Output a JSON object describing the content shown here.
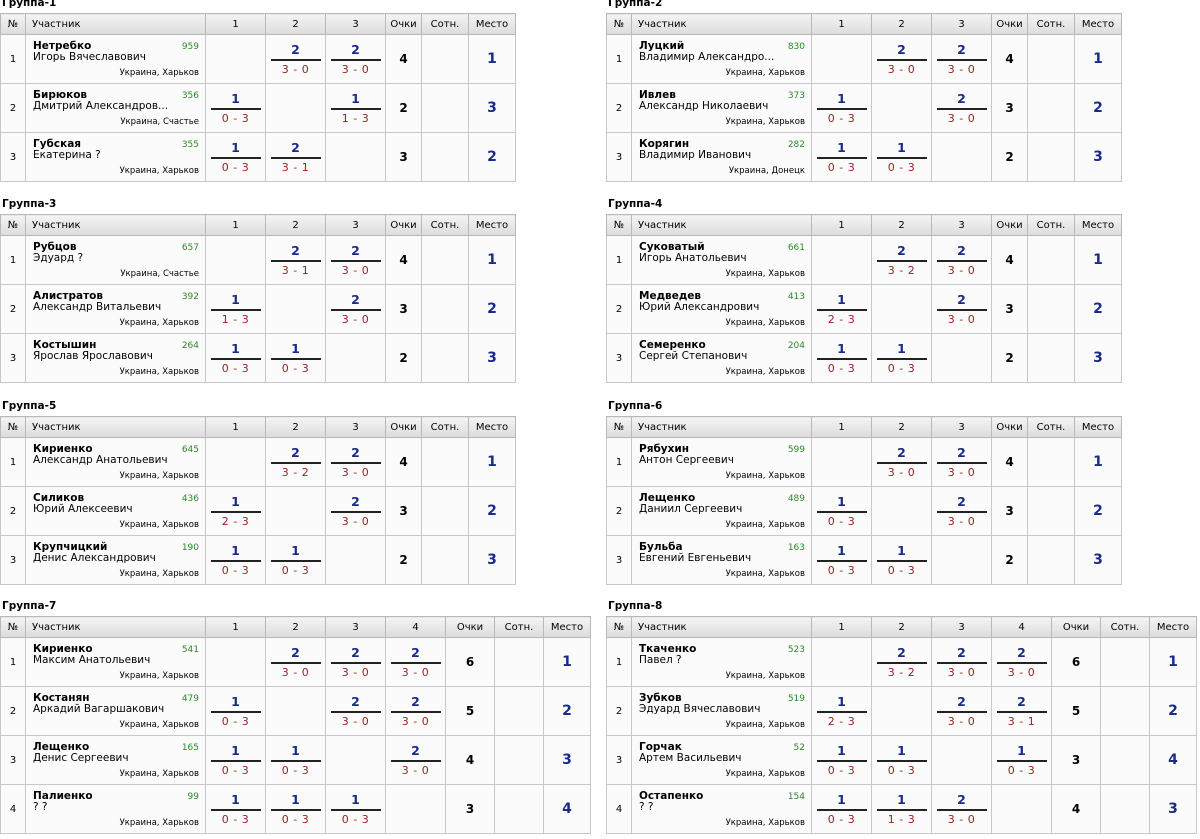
{
  "headers": {
    "num": "№",
    "participant": "Участник",
    "points": "Очки",
    "ratio": "Сотн.",
    "place": "Место"
  },
  "groups": [
    {
      "title": "Группа-1",
      "cols": [
        "1",
        "2",
        "3"
      ],
      "rows": [
        {
          "num": "1",
          "surname": "Нетребко",
          "name": "Игорь Вячеславович",
          "rating": "959",
          "location": "Украина, Харьков",
          "results": [
            null,
            {
              "p": "2",
              "s": "3 - 0"
            },
            {
              "p": "2",
              "s": "3 - 0"
            }
          ],
          "points": "4",
          "ratio": "",
          "place": "1"
        },
        {
          "num": "2",
          "surname": "Бирюков",
          "name": "Дмитрий Александров...",
          "rating": "356",
          "location": "Украина, Счастье",
          "results": [
            {
              "p": "1",
              "s": "0 - 3"
            },
            null,
            {
              "p": "1",
              "s": "1 - 3"
            }
          ],
          "points": "2",
          "ratio": "",
          "place": "3"
        },
        {
          "num": "3",
          "surname": "Губская",
          "name": "Екатерина ?",
          "rating": "355",
          "location": "Украина, Харьков",
          "results": [
            {
              "p": "1",
              "s": "0 - 3"
            },
            {
              "p": "2",
              "s": "3 - 1"
            },
            null
          ],
          "points": "3",
          "ratio": "",
          "place": "2"
        }
      ]
    },
    {
      "title": "Группа-2",
      "cols": [
        "1",
        "2",
        "3"
      ],
      "rows": [
        {
          "num": "1",
          "surname": "Луцкий",
          "name": "Владимир Александро...",
          "rating": "830",
          "location": "Украина, Харьков",
          "results": [
            null,
            {
              "p": "2",
              "s": "3 - 0"
            },
            {
              "p": "2",
              "s": "3 - 0"
            }
          ],
          "points": "4",
          "ratio": "",
          "place": "1"
        },
        {
          "num": "2",
          "surname": "Ивлев",
          "name": "Александр Николаевич",
          "rating": "373",
          "location": "Украина, Харьков",
          "results": [
            {
              "p": "1",
              "s": "0 - 3"
            },
            null,
            {
              "p": "2",
              "s": "3 - 0"
            }
          ],
          "points": "3",
          "ratio": "",
          "place": "2"
        },
        {
          "num": "3",
          "surname": "Корягин",
          "name": "Владимир Иванович",
          "rating": "282",
          "location": "Украина, Донецк",
          "results": [
            {
              "p": "1",
              "s": "0 - 3"
            },
            {
              "p": "1",
              "s": "0 - 3"
            },
            null
          ],
          "points": "2",
          "ratio": "",
          "place": "3"
        }
      ]
    },
    {
      "title": "Группа-3",
      "cols": [
        "1",
        "2",
        "3"
      ],
      "rows": [
        {
          "num": "1",
          "surname": "Рубцов",
          "name": "Эдуард ?",
          "rating": "657",
          "location": "Украина, Счастье",
          "results": [
            null,
            {
              "p": "2",
              "s": "3 - 1"
            },
            {
              "p": "2",
              "s": "3 - 0"
            }
          ],
          "points": "4",
          "ratio": "",
          "place": "1"
        },
        {
          "num": "2",
          "surname": "Алистратов",
          "name": "Александр Витальевич",
          "rating": "392",
          "location": "Украина, Харьков",
          "results": [
            {
              "p": "1",
              "s": "1 - 3"
            },
            null,
            {
              "p": "2",
              "s": "3 - 0"
            }
          ],
          "points": "3",
          "ratio": "",
          "place": "2"
        },
        {
          "num": "3",
          "surname": "Костышин",
          "name": "Ярослав Ярославович",
          "rating": "264",
          "location": "Украина, Харьков",
          "results": [
            {
              "p": "1",
              "s": "0 - 3"
            },
            {
              "p": "1",
              "s": "0 - 3"
            },
            null
          ],
          "points": "2",
          "ratio": "",
          "place": "3"
        }
      ]
    },
    {
      "title": "Группа-4",
      "cols": [
        "1",
        "2",
        "3"
      ],
      "rows": [
        {
          "num": "1",
          "surname": "Суковатый",
          "name": "Игорь Анатольевич",
          "rating": "661",
          "location": "Украина, Харьков",
          "results": [
            null,
            {
              "p": "2",
              "s": "3 - 2"
            },
            {
              "p": "2",
              "s": "3 - 0"
            }
          ],
          "points": "4",
          "ratio": "",
          "place": "1"
        },
        {
          "num": "2",
          "surname": "Медведев",
          "name": "Юрий Александрович",
          "rating": "413",
          "location": "Украина, Харьков",
          "results": [
            {
              "p": "1",
              "s": "2 - 3"
            },
            null,
            {
              "p": "2",
              "s": "3 - 0"
            }
          ],
          "points": "3",
          "ratio": "",
          "place": "2"
        },
        {
          "num": "3",
          "surname": "Семеренко",
          "name": "Сергей Степанович",
          "rating": "204",
          "location": "Украина, Харьков",
          "results": [
            {
              "p": "1",
              "s": "0 - 3"
            },
            {
              "p": "1",
              "s": "0 - 3"
            },
            null
          ],
          "points": "2",
          "ratio": "",
          "place": "3"
        }
      ]
    },
    {
      "title": "Группа-5",
      "cols": [
        "1",
        "2",
        "3"
      ],
      "rows": [
        {
          "num": "1",
          "surname": "Кириенко",
          "name": "Александр Анатольевич",
          "rating": "645",
          "location": "Украина, Харьков",
          "results": [
            null,
            {
              "p": "2",
              "s": "3 - 2"
            },
            {
              "p": "2",
              "s": "3 - 0"
            }
          ],
          "points": "4",
          "ratio": "",
          "place": "1"
        },
        {
          "num": "2",
          "surname": "Силиков",
          "name": "Юрий Алексеевич",
          "rating": "436",
          "location": "Украина, Харьков",
          "results": [
            {
              "p": "1",
              "s": "2 - 3"
            },
            null,
            {
              "p": "2",
              "s": "3 - 0"
            }
          ],
          "points": "3",
          "ratio": "",
          "place": "2"
        },
        {
          "num": "3",
          "surname": "Крупчицкий",
          "name": "Денис Александрович",
          "rating": "190",
          "location": "Украина, Харьков",
          "results": [
            {
              "p": "1",
              "s": "0 - 3"
            },
            {
              "p": "1",
              "s": "0 - 3"
            },
            null
          ],
          "points": "2",
          "ratio": "",
          "place": "3"
        }
      ]
    },
    {
      "title": "Группа-6",
      "cols": [
        "1",
        "2",
        "3"
      ],
      "rows": [
        {
          "num": "1",
          "surname": "Рябухин",
          "name": "Антон Сергеевич",
          "rating": "599",
          "location": "Украина, Харьков",
          "results": [
            null,
            {
              "p": "2",
              "s": "3 - 0"
            },
            {
              "p": "2",
              "s": "3 - 0"
            }
          ],
          "points": "4",
          "ratio": "",
          "place": "1"
        },
        {
          "num": "2",
          "surname": "Лещенко",
          "name": "Даниил Сергеевич",
          "rating": "489",
          "location": "Украина, Харьков",
          "results": [
            {
              "p": "1",
              "s": "0 - 3"
            },
            null,
            {
              "p": "2",
              "s": "3 - 0"
            }
          ],
          "points": "3",
          "ratio": "",
          "place": "2"
        },
        {
          "num": "3",
          "surname": "Бульба",
          "name": "Евгений Евгеньевич",
          "rating": "163",
          "location": "Украина, Харьков",
          "results": [
            {
              "p": "1",
              "s": "0 - 3"
            },
            {
              "p": "1",
              "s": "0 - 3"
            },
            null
          ],
          "points": "2",
          "ratio": "",
          "place": "3"
        }
      ]
    },
    {
      "title": "Группа-7",
      "cols": [
        "1",
        "2",
        "3",
        "4"
      ],
      "rows": [
        {
          "num": "1",
          "surname": "Кириенко",
          "name": "Максим Анатольевич",
          "rating": "541",
          "location": "Украина, Харьков",
          "results": [
            null,
            {
              "p": "2",
              "s": "3 - 0"
            },
            {
              "p": "2",
              "s": "3 - 0"
            },
            {
              "p": "2",
              "s": "3 - 0"
            }
          ],
          "points": "6",
          "ratio": "",
          "place": "1"
        },
        {
          "num": "2",
          "surname": "Костанян",
          "name": "Аркадий Вагаршакович",
          "rating": "479",
          "location": "Украина, Харьков",
          "results": [
            {
              "p": "1",
              "s": "0 - 3"
            },
            null,
            {
              "p": "2",
              "s": "3 - 0"
            },
            {
              "p": "2",
              "s": "3 - 0"
            }
          ],
          "points": "5",
          "ratio": "",
          "place": "2"
        },
        {
          "num": "3",
          "surname": "Лещенко",
          "name": "Денис Сергеевич",
          "rating": "165",
          "location": "Украина, Харьков",
          "results": [
            {
              "p": "1",
              "s": "0 - 3"
            },
            {
              "p": "1",
              "s": "0 - 3"
            },
            null,
            {
              "p": "2",
              "s": "3 - 0"
            }
          ],
          "points": "4",
          "ratio": "",
          "place": "3"
        },
        {
          "num": "4",
          "surname": "Палиенко",
          "name": "? ?",
          "rating": "99",
          "location": "Украина, Харьков",
          "results": [
            {
              "p": "1",
              "s": "0 - 3"
            },
            {
              "p": "1",
              "s": "0 - 3"
            },
            {
              "p": "1",
              "s": "0 - 3"
            },
            null
          ],
          "points": "3",
          "ratio": "",
          "place": "4"
        }
      ]
    },
    {
      "title": "Группа-8",
      "cols": [
        "1",
        "2",
        "3",
        "4"
      ],
      "rows": [
        {
          "num": "1",
          "surname": "Ткаченко",
          "name": "Павел ?",
          "rating": "523",
          "location": "Украина, Харьков",
          "results": [
            null,
            {
              "p": "2",
              "s": "3 - 2"
            },
            {
              "p": "2",
              "s": "3 - 0"
            },
            {
              "p": "2",
              "s": "3 - 0"
            }
          ],
          "points": "6",
          "ratio": "",
          "place": "1"
        },
        {
          "num": "2",
          "surname": "Зубков",
          "name": "Эдуард Вячеславович",
          "rating": "519",
          "location": "Украина, Харьков",
          "results": [
            {
              "p": "1",
              "s": "2 - 3"
            },
            null,
            {
              "p": "2",
              "s": "3 - 0"
            },
            {
              "p": "2",
              "s": "3 - 1"
            }
          ],
          "points": "5",
          "ratio": "",
          "place": "2"
        },
        {
          "num": "3",
          "surname": "Горчак",
          "name": "Артем Васильевич",
          "rating": "52",
          "location": "Украина, Харьков",
          "results": [
            {
              "p": "1",
              "s": "0 - 3"
            },
            {
              "p": "1",
              "s": "0 - 3"
            },
            null,
            {
              "p": "1",
              "s": "0 - 3"
            }
          ],
          "points": "3",
          "ratio": "",
          "place": "4"
        },
        {
          "num": "4",
          "surname": "Остапенко",
          "name": "? ?",
          "rating": "154",
          "location": "Украина, Харьков",
          "results": [
            {
              "p": "1",
              "s": "0 - 3"
            },
            {
              "p": "1",
              "s": "1 - 3"
            },
            {
              "p": "2",
              "s": "3 - 0"
            },
            null
          ],
          "points": "4",
          "ratio": "",
          "place": "3"
        }
      ]
    }
  ]
}
